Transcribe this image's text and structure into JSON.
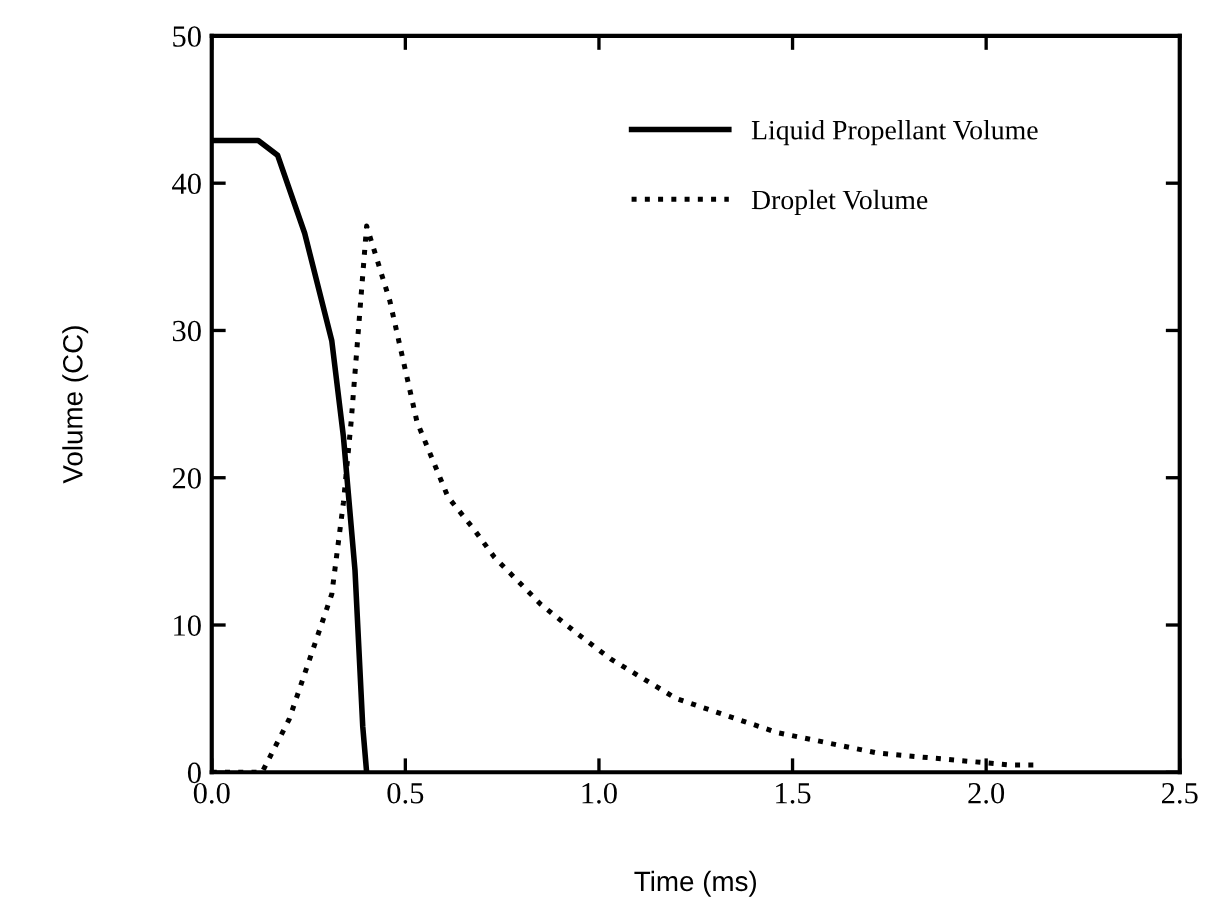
{
  "chart_data": {
    "type": "line",
    "xlabel": "Time (ms)",
    "ylabel": "Volume (CC)",
    "xlim": [
      0,
      2.5
    ],
    "xticks": [
      {
        "value": 0,
        "label": "0.0"
      },
      0.5,
      {
        "value": 1,
        "label": "1.0"
      },
      1.5,
      {
        "value": 2,
        "label": "2.0"
      },
      2.5
    ],
    "ylim": [
      0,
      50
    ],
    "yticks": [
      0,
      10,
      20,
      30,
      40,
      50
    ],
    "grid": false,
    "legend": "top right",
    "marker": "none",
    "series": [
      {
        "name": "Liquid Propellant Volume",
        "color": "#000000",
        "line_style": "solid",
        "x": [
          0,
          0.12,
          0.17,
          0.24,
          0.31,
          0.34,
          0.37,
          0.39,
          0.4
        ],
        "values": [
          42.9,
          42.9,
          41.9,
          36.6,
          29.3,
          22.8,
          13.7,
          3.1,
          0
        ]
      },
      {
        "name": "Droplet Volume",
        "color": "#000000",
        "line_style": "dotted",
        "x": [
          0,
          0.13,
          0.2,
          0.31,
          0.34,
          0.36,
          0.4,
          0.46,
          0.53,
          0.61,
          0.68,
          0.73,
          0.85,
          0.94,
          1.03,
          1.2,
          1.46,
          1.72,
          2.06,
          2.13
        ],
        "values": [
          0,
          0,
          3.6,
          12.1,
          18.3,
          23.8,
          37.1,
          32.0,
          23.8,
          18.7,
          16.4,
          14.6,
          11.4,
          9.5,
          7.7,
          5.0,
          2.7,
          1.3,
          0.5,
          0.5
        ]
      }
    ]
  }
}
